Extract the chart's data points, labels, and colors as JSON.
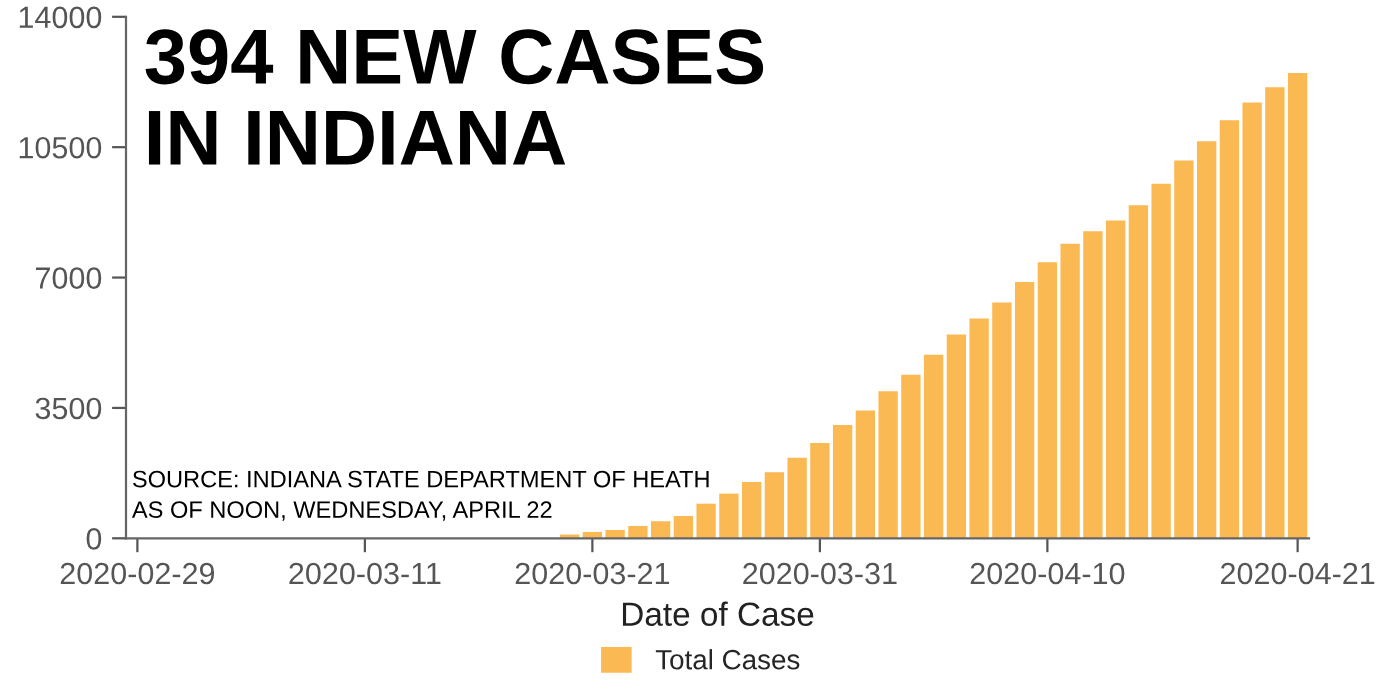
{
  "chart_data": {
    "type": "bar",
    "title": "394 NEW CASES\nIN INDIANA",
    "xlabel": "Date of Case",
    "x": [
      "2020-03-20",
      "2020-03-21",
      "2020-03-22",
      "2020-03-23",
      "2020-03-24",
      "2020-03-25",
      "2020-03-26",
      "2020-03-27",
      "2020-03-28",
      "2020-03-29",
      "2020-03-30",
      "2020-03-31",
      "2020-04-01",
      "2020-04-02",
      "2020-04-03",
      "2020-04-04",
      "2020-04-05",
      "2020-04-06",
      "2020-04-07",
      "2020-04-08",
      "2020-04-09",
      "2020-04-10",
      "2020-04-11",
      "2020-04-12",
      "2020-04-13",
      "2020-04-14",
      "2020-04-15",
      "2020-04-16",
      "2020-04-17",
      "2020-04-18",
      "2020-04-19",
      "2020-04-20",
      "2020-04-21"
    ],
    "series": [
      {
        "name": "Total Cases",
        "color": "#fbb954",
        "values": [
          100,
          170,
          220,
          330,
          460,
          600,
          930,
          1200,
          1510,
          1770,
          2160,
          2560,
          3040,
          3430,
          3950,
          4390,
          4930,
          5470,
          5900,
          6330,
          6880,
          7410,
          7910,
          8240,
          8530,
          8940,
          9520,
          10140,
          10660,
          11220,
          11700,
          12110,
          12490
        ]
      }
    ],
    "xlim": [
      "2020-02-29T12:00",
      "2020-04-21T12:00"
    ],
    "xticks": [
      {
        "value": "2020-03-01",
        "label": "2020-02-29"
      },
      {
        "value": "2020-03-11",
        "label": "2020-03-11"
      },
      {
        "value": "2020-03-21",
        "label": "2020-03-21"
      },
      {
        "value": "2020-03-31",
        "label": "2020-03-31"
      },
      {
        "value": "2020-04-10",
        "label": "2020-04-10"
      },
      {
        "value": "2020-04-21",
        "label": "2020-04-21"
      }
    ],
    "ylim": [
      0,
      14000
    ],
    "yticks": [
      0,
      3500,
      7000,
      10500,
      14000
    ],
    "grid": false,
    "legend": "bottom",
    "annotations": [
      "SOURCE: INDIANA STATE DEPARTMENT OF HEATH\nAS OF NOON, WEDNESDAY, APRIL 22"
    ]
  }
}
